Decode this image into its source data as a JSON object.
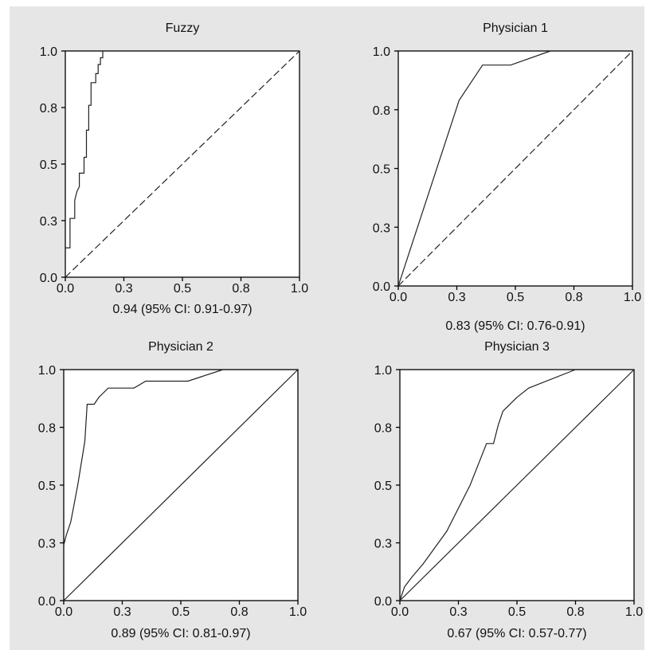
{
  "chart_data": [
    {
      "type": "line",
      "title": "Fuzzy",
      "xlim": [
        0,
        1
      ],
      "ylim": [
        0,
        1
      ],
      "x_ticks": [
        "0.0",
        "0.3",
        "0.5",
        "0.8",
        "1.0"
      ],
      "y_ticks": [
        "0.0",
        "0.3",
        "0.5",
        "0.8",
        "1.0"
      ],
      "grid": false,
      "auc_label": "0.94 (95% CI: 0.91-0.97)",
      "series": [
        {
          "style": "solid",
          "x": [
            0.0,
            0.0,
            0.02,
            0.02,
            0.04,
            0.04,
            0.05,
            0.06,
            0.06,
            0.08,
            0.08,
            0.09,
            0.09,
            0.1,
            0.1,
            0.11,
            0.11,
            0.13,
            0.13,
            0.14,
            0.14,
            0.15,
            0.15,
            0.16,
            0.16
          ],
          "y": [
            0.0,
            0.13,
            0.13,
            0.26,
            0.26,
            0.34,
            0.38,
            0.4,
            0.46,
            0.46,
            0.53,
            0.53,
            0.65,
            0.65,
            0.76,
            0.76,
            0.86,
            0.86,
            0.9,
            0.9,
            0.94,
            0.94,
            0.97,
            0.97,
            1.0
          ]
        },
        {
          "style": "dashed",
          "x": [
            0,
            1
          ],
          "y": [
            0,
            1
          ]
        }
      ]
    },
    {
      "type": "line",
      "title": "Physician 1",
      "xlim": [
        0,
        1
      ],
      "ylim": [
        0,
        1
      ],
      "x_ticks": [
        "0.0",
        "0.3",
        "0.5",
        "0.8",
        "1.0"
      ],
      "y_ticks": [
        "0.0",
        "0.3",
        "0.5",
        "0.8",
        "1.0"
      ],
      "grid": false,
      "auc_label": "0.83 (95% CI: 0.76-0.91)",
      "series": [
        {
          "style": "solid",
          "x": [
            0.0,
            0.26,
            0.36,
            0.48,
            0.65
          ],
          "y": [
            0.0,
            0.79,
            0.94,
            0.94,
            1.0
          ]
        },
        {
          "style": "dashed",
          "x": [
            0,
            1
          ],
          "y": [
            0,
            1
          ]
        }
      ]
    },
    {
      "type": "line",
      "title": "Physician 2",
      "xlim": [
        0,
        1
      ],
      "ylim": [
        0,
        1
      ],
      "x_ticks": [
        "0.0",
        "0.3",
        "0.5",
        "0.8",
        "1.0"
      ],
      "y_ticks": [
        "0.0",
        "0.3",
        "0.5",
        "0.8",
        "1.0"
      ],
      "grid": false,
      "auc_label": "0.89 (95% CI: 0.81-0.97)",
      "series": [
        {
          "style": "solid",
          "x": [
            0.0,
            0.0,
            0.01,
            0.03,
            0.06,
            0.09,
            0.1,
            0.13,
            0.15,
            0.19,
            0.3,
            0.35,
            0.53,
            0.68
          ],
          "y": [
            0.1,
            0.24,
            0.28,
            0.34,
            0.5,
            0.69,
            0.85,
            0.85,
            0.88,
            0.92,
            0.92,
            0.95,
            0.95,
            1.0
          ]
        },
        {
          "style": "solid",
          "x": [
            0,
            1
          ],
          "y": [
            0,
            1
          ]
        }
      ]
    },
    {
      "type": "line",
      "title": "Physician 3",
      "xlim": [
        0,
        1
      ],
      "ylim": [
        0,
        1
      ],
      "x_ticks": [
        "0.0",
        "0.3",
        "0.5",
        "0.8",
        "1.0"
      ],
      "y_ticks": [
        "0.0",
        "0.3",
        "0.5",
        "0.8",
        "1.0"
      ],
      "grid": false,
      "auc_label": "0.67 (95% CI: 0.57-0.77)",
      "series": [
        {
          "style": "solid",
          "x": [
            0.0,
            0.02,
            0.05,
            0.1,
            0.2,
            0.3,
            0.37,
            0.4,
            0.42,
            0.44,
            0.5,
            0.55,
            0.75
          ],
          "y": [
            0.0,
            0.06,
            0.1,
            0.16,
            0.3,
            0.5,
            0.68,
            0.68,
            0.76,
            0.82,
            0.88,
            0.92,
            1.0
          ]
        },
        {
          "style": "solid",
          "x": [
            0,
            1
          ],
          "y": [
            0,
            1
          ]
        }
      ]
    }
  ]
}
